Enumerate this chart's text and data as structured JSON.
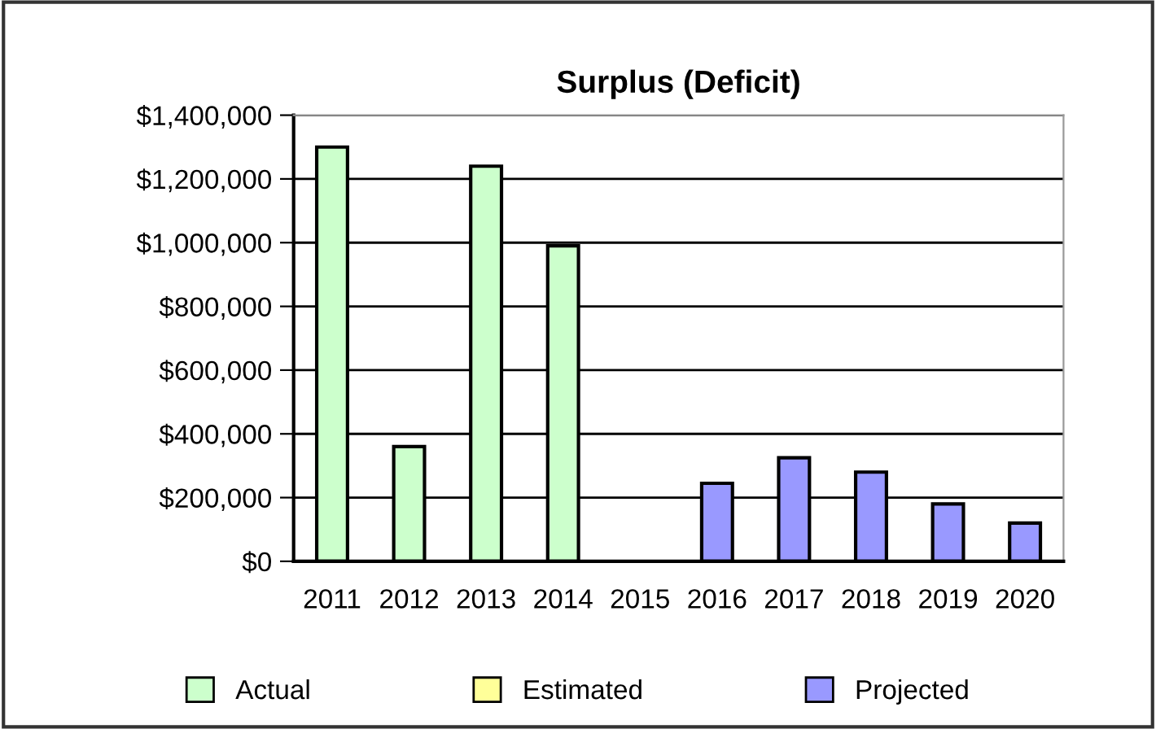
{
  "chart_data": {
    "type": "bar",
    "title": "Surplus (Deficit)",
    "categories": [
      "2011",
      "2012",
      "2013",
      "2014",
      "2015",
      "2016",
      "2017",
      "2018",
      "2019",
      "2020"
    ],
    "series": [
      {
        "name": "Actual",
        "color": "#ccffcc",
        "values": [
          1300000,
          360000,
          1240000,
          990000,
          null,
          null,
          null,
          null,
          null,
          null
        ]
      },
      {
        "name": "Estimated",
        "color": "#ffff99",
        "values": [
          null,
          null,
          null,
          null,
          null,
          null,
          null,
          null,
          null,
          null
        ]
      },
      {
        "name": "Projected",
        "color": "#9999ff",
        "values": [
          null,
          null,
          null,
          null,
          null,
          245000,
          325000,
          280000,
          180000,
          120000
        ]
      }
    ],
    "ylim": [
      0,
      1400000
    ],
    "yticks": [
      {
        "value": 0,
        "label": "$0"
      },
      {
        "value": 200000,
        "label": "$200,000"
      },
      {
        "value": 400000,
        "label": "$400,000"
      },
      {
        "value": 600000,
        "label": "$600,000"
      },
      {
        "value": 800000,
        "label": "$800,000"
      },
      {
        "value": 1000000,
        "label": "$1,000,000"
      },
      {
        "value": 1200000,
        "label": "$1,200,000"
      },
      {
        "value": 1400000,
        "label": "$1,400,000"
      }
    ],
    "grid": "y",
    "legend": "bottom"
  }
}
